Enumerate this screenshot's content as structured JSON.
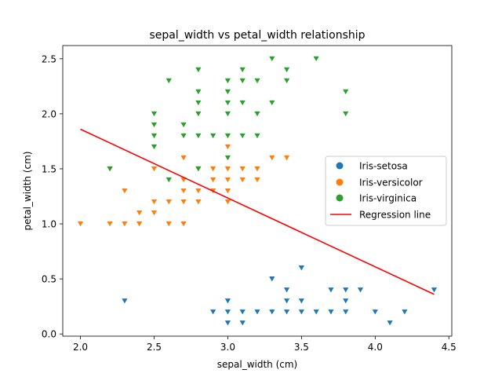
{
  "chart_data": {
    "type": "scatter",
    "title": "sepal_width vs petal_width relationship",
    "xlabel": "sepal_width (cm)",
    "ylabel": "petal_width (cm)",
    "xlim": [
      1.88,
      4.52
    ],
    "ylim": [
      -0.02,
      2.62
    ],
    "xticks": [
      2.0,
      2.5,
      3.0,
      3.5,
      4.0,
      4.5
    ],
    "yticks": [
      0.0,
      0.5,
      1.0,
      1.5,
      2.0,
      2.5
    ],
    "xtick_labels": [
      "2.0",
      "2.5",
      "3.0",
      "3.5",
      "4.0",
      "4.5"
    ],
    "ytick_labels": [
      "0.0",
      "0.5",
      "1.0",
      "1.5",
      "2.0",
      "2.5"
    ],
    "grid": false,
    "legend_position": "right",
    "marker": "triangle-down",
    "series": [
      {
        "name": "Iris-setosa",
        "color": "#1f77b4",
        "points": [
          [
            2.3,
            0.3
          ],
          [
            2.9,
            0.2
          ],
          [
            3.0,
            0.1
          ],
          [
            3.0,
            0.2
          ],
          [
            3.0,
            0.3
          ],
          [
            3.1,
            0.1
          ],
          [
            3.1,
            0.2
          ],
          [
            3.2,
            0.2
          ],
          [
            3.3,
            0.2
          ],
          [
            3.3,
            0.5
          ],
          [
            3.4,
            0.2
          ],
          [
            3.4,
            0.3
          ],
          [
            3.4,
            0.4
          ],
          [
            3.5,
            0.2
          ],
          [
            3.5,
            0.3
          ],
          [
            3.5,
            0.6
          ],
          [
            3.6,
            0.2
          ],
          [
            3.7,
            0.2
          ],
          [
            3.7,
            0.4
          ],
          [
            3.8,
            0.2
          ],
          [
            3.8,
            0.3
          ],
          [
            3.8,
            0.4
          ],
          [
            3.9,
            0.4
          ],
          [
            4.0,
            0.2
          ],
          [
            4.1,
            0.1
          ],
          [
            4.2,
            0.2
          ],
          [
            4.4,
            0.4
          ]
        ]
      },
      {
        "name": "Iris-versicolor",
        "color": "#ff7f0e",
        "points": [
          [
            2.0,
            1.0
          ],
          [
            2.2,
            1.0
          ],
          [
            2.2,
            1.5
          ],
          [
            2.3,
            1.0
          ],
          [
            2.3,
            1.3
          ],
          [
            2.4,
            1.0
          ],
          [
            2.4,
            1.1
          ],
          [
            2.5,
            1.1
          ],
          [
            2.5,
            1.2
          ],
          [
            2.5,
            1.5
          ],
          [
            2.6,
            1.0
          ],
          [
            2.6,
            1.2
          ],
          [
            2.7,
            1.0
          ],
          [
            2.7,
            1.2
          ],
          [
            2.7,
            1.3
          ],
          [
            2.7,
            1.4
          ],
          [
            2.7,
            1.6
          ],
          [
            2.8,
            1.2
          ],
          [
            2.8,
            1.3
          ],
          [
            2.8,
            1.5
          ],
          [
            2.9,
            1.3
          ],
          [
            2.9,
            1.4
          ],
          [
            2.9,
            1.5
          ],
          [
            3.0,
            1.2
          ],
          [
            3.0,
            1.3
          ],
          [
            3.0,
            1.4
          ],
          [
            3.0,
            1.5
          ],
          [
            3.0,
            1.7
          ],
          [
            3.1,
            1.4
          ],
          [
            3.1,
            1.5
          ],
          [
            3.2,
            1.4
          ],
          [
            3.2,
            1.5
          ],
          [
            3.3,
            1.6
          ],
          [
            3.4,
            1.6
          ]
        ]
      },
      {
        "name": "Iris-virginica",
        "color": "#2ca02c",
        "points": [
          [
            2.2,
            1.5
          ],
          [
            2.5,
            1.7
          ],
          [
            2.5,
            1.8
          ],
          [
            2.5,
            1.9
          ],
          [
            2.5,
            2.0
          ],
          [
            2.6,
            1.4
          ],
          [
            2.6,
            2.3
          ],
          [
            2.7,
            1.8
          ],
          [
            2.7,
            1.9
          ],
          [
            2.8,
            1.5
          ],
          [
            2.8,
            1.8
          ],
          [
            2.8,
            2.0
          ],
          [
            2.8,
            2.1
          ],
          [
            2.8,
            2.2
          ],
          [
            2.8,
            2.4
          ],
          [
            2.9,
            1.8
          ],
          [
            3.0,
            1.6
          ],
          [
            3.0,
            1.8
          ],
          [
            3.0,
            2.0
          ],
          [
            3.0,
            2.1
          ],
          [
            3.0,
            2.2
          ],
          [
            3.0,
            2.3
          ],
          [
            3.1,
            1.8
          ],
          [
            3.1,
            2.1
          ],
          [
            3.1,
            2.3
          ],
          [
            3.1,
            2.4
          ],
          [
            3.2,
            1.8
          ],
          [
            3.2,
            2.0
          ],
          [
            3.2,
            2.3
          ],
          [
            3.3,
            2.1
          ],
          [
            3.3,
            2.5
          ],
          [
            3.4,
            2.3
          ],
          [
            3.4,
            2.4
          ],
          [
            3.6,
            2.5
          ],
          [
            3.8,
            2.0
          ],
          [
            3.8,
            2.2
          ]
        ]
      }
    ],
    "regression_line": {
      "name": "Regression line",
      "color": "#ff0000",
      "points": [
        [
          2.0,
          1.86
        ],
        [
          4.4,
          0.36
        ]
      ]
    }
  }
}
